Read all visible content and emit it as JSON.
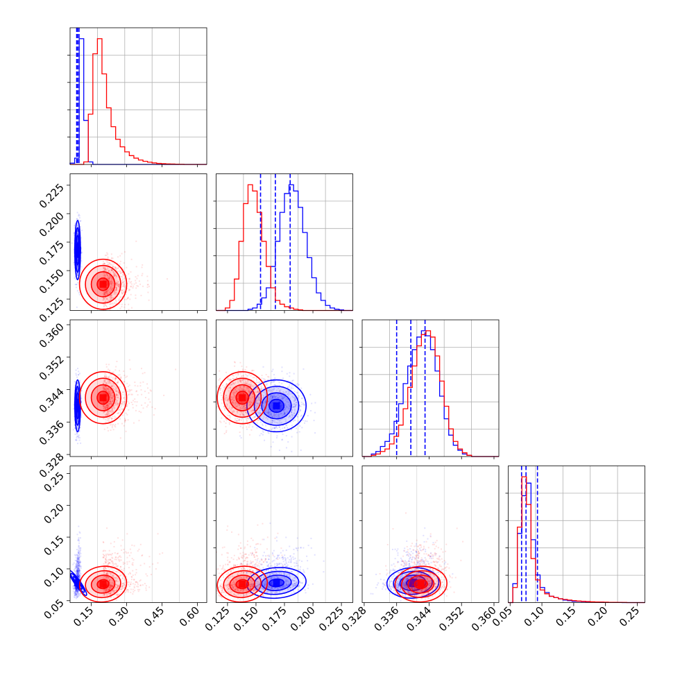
{
  "chart_data": {
    "type": "corner",
    "colors": {
      "blue": "#0000ff",
      "red": "#ff0000"
    },
    "grid": true,
    "variables": [
      {
        "range": [
          0.06,
          0.64
        ],
        "ticks": [
          "0.15",
          "0.30",
          "0.45",
          "0.60"
        ]
      },
      {
        "range": [
          0.115,
          0.235
        ],
        "ticks": [
          "0.125",
          "0.150",
          "0.175",
          "0.200",
          "0.225"
        ]
      },
      {
        "range": [
          0.3275,
          0.3612
        ],
        "ticks": [
          "0.328",
          "0.336",
          "0.344",
          "0.352",
          "0.360"
        ]
      },
      {
        "range": [
          0.047,
          0.262
        ],
        "ticks": [
          "0.05",
          "0.10",
          "0.15",
          "0.20",
          "0.25"
        ]
      }
    ],
    "series": [
      {
        "color": "#0000ff",
        "means": [
          0.092,
          0.168,
          0.34,
          0.078
        ],
        "stds": [
          0.006,
          0.013,
          0.0032,
          0.012
        ],
        "quantiles": [
          [
            0.088,
            0.092,
            0.098
          ],
          [
            0.154,
            0.167,
            0.18
          ],
          [
            0.336,
            0.3395,
            0.343
          ],
          [
            0.068,
            0.075,
            0.093
          ]
        ],
        "histograms": [
          [
            0.01,
            0.05,
            1.0,
            0.35,
            0.02,
            0,
            0,
            0,
            0,
            0,
            0,
            0,
            0,
            0,
            0,
            0,
            0,
            0,
            0,
            0,
            0,
            0,
            0,
            0,
            0,
            0,
            0,
            0,
            0,
            0
          ],
          [
            0,
            0,
            0,
            0,
            0,
            0,
            0,
            0.01,
            0.02,
            0.05,
            0.1,
            0.18,
            0.35,
            0.55,
            0.78,
            0.93,
            1.0,
            0.95,
            0.82,
            0.62,
            0.42,
            0.26,
            0.14,
            0.08,
            0.04,
            0.02,
            0.01,
            0.005,
            0,
            0
          ],
          [
            0,
            0,
            0.02,
            0.04,
            0.08,
            0.12,
            0.18,
            0.28,
            0.42,
            0.58,
            0.72,
            0.85,
            0.95,
            1.0,
            0.96,
            0.85,
            0.68,
            0.48,
            0.3,
            0.17,
            0.09,
            0.05,
            0.02,
            0.01,
            0,
            0,
            0,
            0,
            0,
            0
          ],
          [
            0,
            0.15,
            0.55,
            0.85,
            0.95,
            0.5,
            0.22,
            0.12,
            0.08,
            0.05,
            0.04,
            0.03,
            0.02,
            0.015,
            0.01,
            0.01,
            0.008,
            0.006,
            0.005,
            0.004,
            0.003,
            0.002,
            0.002,
            0.001,
            0.001,
            0,
            0,
            0,
            0,
            0
          ]
        ]
      },
      {
        "color": "#ff0000",
        "means": [
          0.2,
          0.138,
          0.342,
          0.076
        ],
        "stds": [
          0.05,
          0.011,
          0.0032,
          0.014
        ],
        "quantiles": [],
        "histograms": [
          [
            0,
            0,
            0,
            0.02,
            0.4,
            0.88,
            1.0,
            0.72,
            0.45,
            0.3,
            0.2,
            0.14,
            0.1,
            0.07,
            0.05,
            0.035,
            0.025,
            0.018,
            0.012,
            0.008,
            0.006,
            0.004,
            0.003,
            0.002,
            0.001,
            0,
            0,
            0,
            0,
            0
          ],
          [
            0,
            0,
            0.02,
            0.08,
            0.25,
            0.55,
            0.85,
            1.0,
            0.95,
            0.78,
            0.55,
            0.35,
            0.18,
            0.08,
            0.05,
            0.03,
            0.02,
            0.01,
            0.005,
            0,
            0,
            0,
            0,
            0,
            0,
            0,
            0,
            0,
            0,
            0
          ],
          [
            0,
            0,
            0.01,
            0.02,
            0.04,
            0.06,
            0.1,
            0.16,
            0.25,
            0.38,
            0.55,
            0.72,
            0.88,
            0.97,
            1.0,
            0.95,
            0.8,
            0.6,
            0.4,
            0.22,
            0.12,
            0.06,
            0.03,
            0.01,
            0,
            0,
            0,
            0,
            0,
            0
          ],
          [
            0,
            0.12,
            0.6,
            1.0,
            0.78,
            0.35,
            0.18,
            0.1,
            0.07,
            0.05,
            0.04,
            0.03,
            0.025,
            0.02,
            0.015,
            0.012,
            0.01,
            0.008,
            0.006,
            0.005,
            0.004,
            0.003,
            0.002,
            0.002,
            0.001,
            0.001,
            0,
            0,
            0,
            0
          ]
        ]
      }
    ],
    "correlations": {
      "0-3": 0.3,
      "1-3": 0.25,
      "2-3": 0.15,
      "0-1": 0.0,
      "0-2": 0.0,
      "1-2": 0.0
    }
  }
}
